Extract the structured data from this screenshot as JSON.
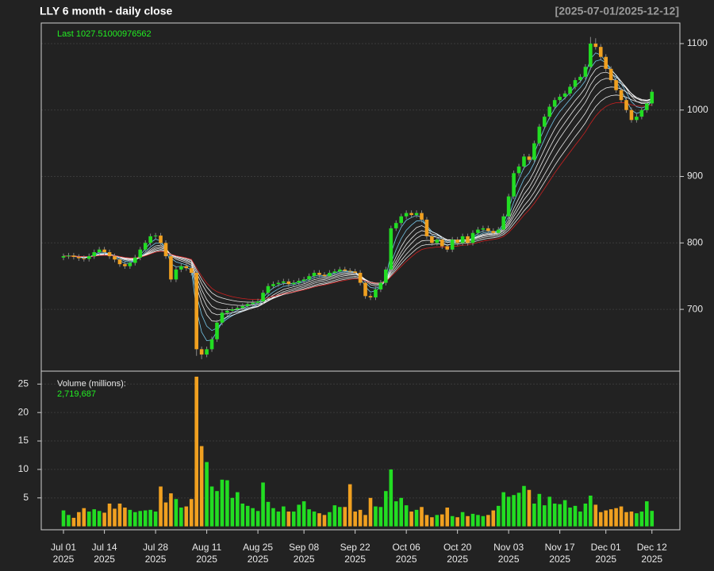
{
  "chart_data": {
    "type": "candlestick",
    "title": "LLY  6 month - daily close",
    "date_range": "[2025-07-01/2025-12-12]",
    "last_label": "Last 1027.51000976562",
    "up_color": "#22dd22",
    "down_color": "#f0a020",
    "categories": [
      "Jul 01\n2025",
      null,
      null,
      null,
      null,
      null,
      null,
      null,
      "Jul 14\n2025",
      null,
      null,
      null,
      null,
      null,
      null,
      null,
      null,
      null,
      "Jul 28\n2025",
      null,
      null,
      null,
      null,
      null,
      null,
      null,
      null,
      null,
      "Aug 11\n2025",
      null,
      null,
      null,
      null,
      null,
      null,
      null,
      null,
      null,
      "Aug 25\n2025",
      null,
      null,
      null,
      null,
      null,
      null,
      null,
      null,
      "Sep 08\n2025",
      null,
      null,
      null,
      null,
      null,
      null,
      null,
      null,
      null,
      "Sep 22\n2025",
      null,
      null,
      null,
      null,
      null,
      null,
      null,
      null,
      null,
      "Oct 06\n2025",
      null,
      null,
      null,
      null,
      null,
      null,
      null,
      null,
      null,
      "Oct 20\n2025",
      null,
      null,
      null,
      null,
      null,
      null,
      null,
      null,
      null,
      "Nov 03\n2025",
      null,
      null,
      null,
      null,
      null,
      null,
      null,
      null,
      null,
      "Nov 17\n2025",
      null,
      null,
      null,
      null,
      null,
      null,
      null,
      null,
      "Dec 01\n2025",
      null,
      null,
      null,
      null,
      null,
      null,
      null,
      null,
      "Dec 12\n2025"
    ],
    "open": [
      778,
      780,
      781,
      779,
      777,
      776,
      780,
      786,
      790,
      786,
      780,
      775,
      768,
      765,
      770,
      778,
      790,
      800,
      810,
      811,
      800,
      780,
      745,
      760,
      765,
      762,
      755,
      640,
      632,
      640,
      655,
      680,
      695,
      698,
      700,
      702,
      705,
      708,
      710,
      712,
      725,
      735,
      738,
      740,
      742,
      738,
      740,
      743,
      745,
      750,
      755,
      752,
      750,
      755,
      757,
      760,
      758,
      757,
      755,
      740,
      720,
      718,
      730,
      740,
      760,
      822,
      830,
      840,
      845,
      842,
      845,
      835,
      810,
      800,
      805,
      795,
      790,
      805,
      800,
      810,
      800,
      815,
      820,
      822,
      818,
      815,
      820,
      840,
      870,
      905,
      915,
      930,
      925,
      950,
      975,
      990,
      1005,
      1015,
      1020,
      1025,
      1035,
      1045,
      1050,
      1065,
      1100,
      1095,
      1080,
      1062,
      1045,
      1030,
      1015,
      1000,
      985,
      990,
      1000,
      1010
    ],
    "high": [
      784,
      785,
      785,
      783,
      781,
      784,
      790,
      794,
      794,
      790,
      784,
      779,
      772,
      774,
      782,
      794,
      804,
      814,
      815,
      815,
      804,
      784,
      764,
      769,
      769,
      766,
      759,
      644,
      644,
      659,
      684,
      699,
      702,
      704,
      706,
      709,
      712,
      714,
      716,
      729,
      739,
      742,
      744,
      746,
      746,
      744,
      747,
      749,
      754,
      759,
      759,
      756,
      759,
      761,
      764,
      764,
      762,
      761,
      759,
      744,
      724,
      734,
      744,
      764,
      826,
      834,
      844,
      849,
      849,
      849,
      849,
      839,
      814,
      809,
      809,
      799,
      809,
      809,
      814,
      814,
      819,
      824,
      826,
      826,
      822,
      824,
      844,
      874,
      909,
      919,
      934,
      934,
      954,
      979,
      994,
      1009,
      1019,
      1024,
      1029,
      1039,
      1049,
      1054,
      1069,
      1110,
      1108,
      1099,
      1084,
      1066,
      1049,
      1034,
      1019,
      1004,
      994,
      1004,
      1014,
      1031
    ],
    "low": [
      774,
      776,
      775,
      773,
      772,
      772,
      776,
      782,
      782,
      776,
      771,
      764,
      761,
      761,
      766,
      774,
      786,
      796,
      806,
      796,
      776,
      741,
      741,
      756,
      758,
      751,
      630,
      625,
      628,
      636,
      651,
      676,
      691,
      694,
      696,
      698,
      701,
      704,
      706,
      708,
      721,
      731,
      734,
      736,
      734,
      734,
      736,
      739,
      741,
      746,
      748,
      746,
      746,
      751,
      753,
      754,
      753,
      751,
      736,
      716,
      714,
      714,
      726,
      736,
      756,
      818,
      826,
      836,
      838,
      838,
      831,
      806,
      796,
      796,
      791,
      786,
      786,
      796,
      796,
      796,
      796,
      811,
      816,
      814,
      811,
      811,
      816,
      836,
      866,
      901,
      911,
      921,
      921,
      946,
      971,
      986,
      1001,
      1011,
      1016,
      1021,
      1031,
      1041,
      1046,
      1061,
      1091,
      1076,
      1058,
      1041,
      1026,
      1011,
      996,
      981,
      981,
      986,
      996,
      1006
    ],
    "close": [
      780,
      781,
      779,
      777,
      776,
      780,
      786,
      790,
      786,
      780,
      775,
      768,
      765,
      770,
      778,
      790,
      800,
      810,
      811,
      800,
      780,
      745,
      760,
      765,
      762,
      755,
      640,
      632,
      640,
      655,
      680,
      695,
      698,
      700,
      702,
      705,
      708,
      710,
      712,
      725,
      735,
      738,
      740,
      742,
      738,
      740,
      743,
      745,
      750,
      755,
      752,
      750,
      755,
      757,
      760,
      758,
      757,
      755,
      740,
      720,
      718,
      730,
      740,
      760,
      822,
      830,
      840,
      845,
      842,
      845,
      835,
      810,
      800,
      805,
      795,
      790,
      805,
      800,
      810,
      800,
      815,
      820,
      822,
      818,
      815,
      820,
      840,
      870,
      905,
      915,
      930,
      925,
      950,
      975,
      990,
      1005,
      1015,
      1020,
      1025,
      1035,
      1045,
      1050,
      1065,
      1100,
      1095,
      1080,
      1062,
      1045,
      1030,
      1015,
      1000,
      985,
      990,
      1000,
      1010,
      1027.51000976562
    ],
    "ylim": [
      607,
      1131
    ],
    "yticks": [
      700,
      800,
      900,
      1000,
      1100
    ],
    "volume": {
      "label": "Volume (millions):",
      "last_label": "2,719,687",
      "values": [
        2.8,
        2.0,
        1.5,
        2.5,
        3.2,
        2.6,
        3.0,
        2.7,
        2.4,
        4.0,
        3.1,
        4.0,
        3.3,
        2.9,
        2.5,
        2.7,
        2.8,
        2.9,
        2.6,
        7.0,
        4.2,
        5.8,
        4.8,
        3.3,
        3.5,
        4.8,
        26.3,
        14.1,
        11.3,
        7.0,
        6.2,
        8.2,
        8.1,
        5.0,
        6.0,
        4.0,
        3.6,
        3.2,
        2.7,
        7.7,
        4.3,
        3.2,
        2.6,
        3.5,
        2.6,
        2.6,
        3.8,
        4.4,
        3.0,
        2.6,
        2.3,
        2.0,
        2.5,
        3.7,
        3.4,
        3.4,
        7.4,
        2.6,
        2.9,
        2.0,
        5.0,
        3.5,
        3.4,
        6.2,
        10.0,
        4.4,
        5.0,
        3.7,
        2.6,
        2.9,
        3.4,
        2.0,
        1.6,
        2.0,
        2.1,
        3.3,
        1.8,
        1.6,
        2.5,
        1.8,
        2.2,
        2.0,
        1.8,
        2.0,
        2.8,
        3.6,
        6.0,
        5.2,
        5.5,
        5.9,
        7.1,
        6.4,
        4.0,
        5.7,
        3.7,
        5.2,
        4.0,
        3.9,
        4.6,
        3.3,
        3.6,
        2.6,
        4.0,
        5.4,
        3.8,
        2.5,
        2.8,
        3.0,
        3.2,
        3.5,
        2.5,
        2.6,
        2.3,
        2.6,
        4.4,
        2.719687
      ],
      "ylim": [
        -0.6,
        27.27
      ],
      "yticks": [
        5,
        10,
        15,
        20,
        25
      ]
    },
    "grid": true
  }
}
